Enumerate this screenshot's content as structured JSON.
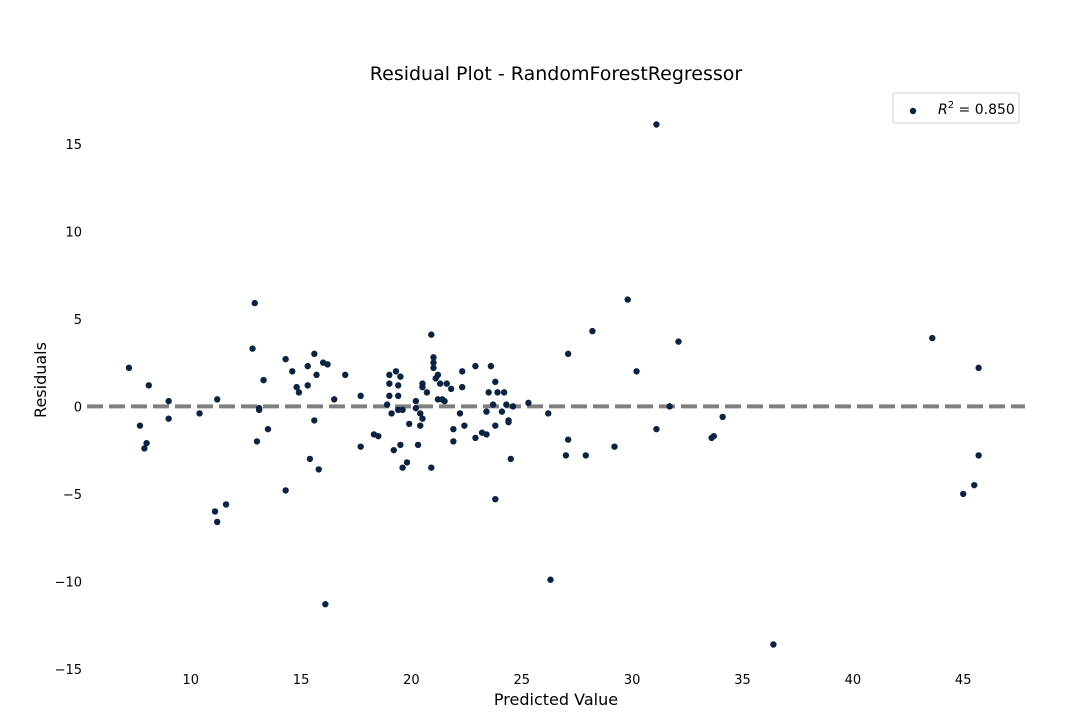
{
  "chart_data": {
    "type": "scatter",
    "title": "Residual Plot - RandomForestRegressor",
    "xlabel": "Predicted Value",
    "ylabel": "Residuals",
    "xlim": [
      5.3,
      47.8
    ],
    "ylim": [
      -15,
      17.5
    ],
    "xticks": [
      10,
      15,
      20,
      25,
      30,
      35,
      40,
      45
    ],
    "yticks": [
      -15,
      -10,
      -5,
      0,
      5,
      10,
      15
    ],
    "xtick_labels": [
      "10",
      "15",
      "20",
      "25",
      "30",
      "35",
      "40",
      "45"
    ],
    "ytick_labels": [
      "−15",
      "−10",
      "−5",
      "0",
      "5",
      "10",
      "15"
    ],
    "grid": false,
    "legend_position": "top-right",
    "reference_line": {
      "y": 0,
      "style": "dashed",
      "color": "#808080"
    },
    "marker_color": "#0b2240",
    "series": [
      {
        "name": "R² = 0.850",
        "legend_prefix": "R",
        "legend_sup": "2",
        "legend_suffix": " = 0.850",
        "points": [
          [
            7.2,
            2.2
          ],
          [
            7.7,
            -1.1
          ],
          [
            7.9,
            -2.4
          ],
          [
            8.0,
            -2.1
          ],
          [
            8.1,
            1.2
          ],
          [
            9.0,
            0.3
          ],
          [
            9.0,
            -0.7
          ],
          [
            10.4,
            -0.4
          ],
          [
            11.1,
            -6.0
          ],
          [
            11.2,
            -6.6
          ],
          [
            11.2,
            0.4
          ],
          [
            11.6,
            -5.6
          ],
          [
            12.9,
            5.9
          ],
          [
            12.8,
            3.3
          ],
          [
            13.1,
            -0.2
          ],
          [
            13.0,
            -2.0
          ],
          [
            13.1,
            -0.1
          ],
          [
            13.3,
            1.5
          ],
          [
            13.5,
            -1.3
          ],
          [
            14.3,
            2.7
          ],
          [
            14.3,
            -4.8
          ],
          [
            14.6,
            2.0
          ],
          [
            14.8,
            1.1
          ],
          [
            14.9,
            0.8
          ],
          [
            15.3,
            2.3
          ],
          [
            15.3,
            1.2
          ],
          [
            15.4,
            -3.0
          ],
          [
            15.6,
            3.0
          ],
          [
            15.7,
            1.8
          ],
          [
            15.6,
            -0.8
          ],
          [
            15.8,
            -3.6
          ],
          [
            16.0,
            2.5
          ],
          [
            16.2,
            2.4
          ],
          [
            16.5,
            0.4
          ],
          [
            16.1,
            -11.3
          ],
          [
            17.0,
            1.8
          ],
          [
            17.7,
            0.6
          ],
          [
            17.7,
            -2.3
          ],
          [
            18.3,
            -1.6
          ],
          [
            18.5,
            -1.7
          ],
          [
            18.9,
            0.1
          ],
          [
            19.0,
            1.8
          ],
          [
            19.0,
            1.3
          ],
          [
            19.0,
            0.6
          ],
          [
            19.1,
            -0.4
          ],
          [
            19.2,
            -2.5
          ],
          [
            19.3,
            2.0
          ],
          [
            19.4,
            1.2
          ],
          [
            19.4,
            0.6
          ],
          [
            19.5,
            1.7
          ],
          [
            19.4,
            -0.2
          ],
          [
            19.5,
            -2.2
          ],
          [
            19.6,
            -3.5
          ],
          [
            19.6,
            -0.2
          ],
          [
            19.8,
            -3.2
          ],
          [
            19.9,
            -1.0
          ],
          [
            20.2,
            0.3
          ],
          [
            20.2,
            -0.1
          ],
          [
            20.3,
            -2.2
          ],
          [
            20.4,
            -0.4
          ],
          [
            20.5,
            -0.7
          ],
          [
            20.4,
            -1.1
          ],
          [
            20.5,
            1.3
          ],
          [
            20.5,
            1.1
          ],
          [
            20.7,
            0.8
          ],
          [
            20.9,
            4.1
          ],
          [
            20.9,
            -3.5
          ],
          [
            21.0,
            2.5
          ],
          [
            21.0,
            2.8
          ],
          [
            21.0,
            2.2
          ],
          [
            21.1,
            1.6
          ],
          [
            21.2,
            0.4
          ],
          [
            21.2,
            1.8
          ],
          [
            21.3,
            1.3
          ],
          [
            21.4,
            0.4
          ],
          [
            21.5,
            0.3
          ],
          [
            21.6,
            1.3
          ],
          [
            21.8,
            1.0
          ],
          [
            21.9,
            -1.3
          ],
          [
            21.9,
            -2.0
          ],
          [
            22.2,
            -0.4
          ],
          [
            22.3,
            2.0
          ],
          [
            22.3,
            1.1
          ],
          [
            22.4,
            -1.1
          ],
          [
            22.9,
            2.3
          ],
          [
            22.9,
            -1.8
          ],
          [
            23.2,
            -1.5
          ],
          [
            23.4,
            -1.6
          ],
          [
            23.4,
            -0.3
          ],
          [
            23.5,
            0.8
          ],
          [
            23.6,
            2.3
          ],
          [
            23.7,
            0.1
          ],
          [
            23.8,
            1.4
          ],
          [
            23.8,
            -1.1
          ],
          [
            23.9,
            0.8
          ],
          [
            23.8,
            -5.3
          ],
          [
            24.1,
            -0.3
          ],
          [
            24.2,
            0.8
          ],
          [
            24.3,
            0.1
          ],
          [
            24.4,
            -0.8
          ],
          [
            24.4,
            -0.9
          ],
          [
            24.5,
            -3.0
          ],
          [
            24.6,
            0.0
          ],
          [
            25.3,
            0.2
          ],
          [
            26.2,
            -0.4
          ],
          [
            26.3,
            -9.9
          ],
          [
            27.0,
            -2.8
          ],
          [
            27.1,
            3.0
          ],
          [
            27.1,
            -1.9
          ],
          [
            27.9,
            -2.8
          ],
          [
            28.2,
            4.3
          ],
          [
            29.2,
            -2.3
          ],
          [
            29.8,
            6.1
          ],
          [
            30.2,
            2.0
          ],
          [
            31.1,
            16.1
          ],
          [
            31.1,
            -1.3
          ],
          [
            31.7,
            0.0
          ],
          [
            32.1,
            3.7
          ],
          [
            33.6,
            -1.8
          ],
          [
            33.7,
            -1.7
          ],
          [
            34.1,
            -0.6
          ],
          [
            36.4,
            -13.6
          ],
          [
            43.6,
            3.9
          ],
          [
            45.0,
            -5.0
          ],
          [
            45.5,
            -4.5
          ],
          [
            45.7,
            2.2
          ],
          [
            45.7,
            -2.8
          ]
        ]
      }
    ]
  }
}
